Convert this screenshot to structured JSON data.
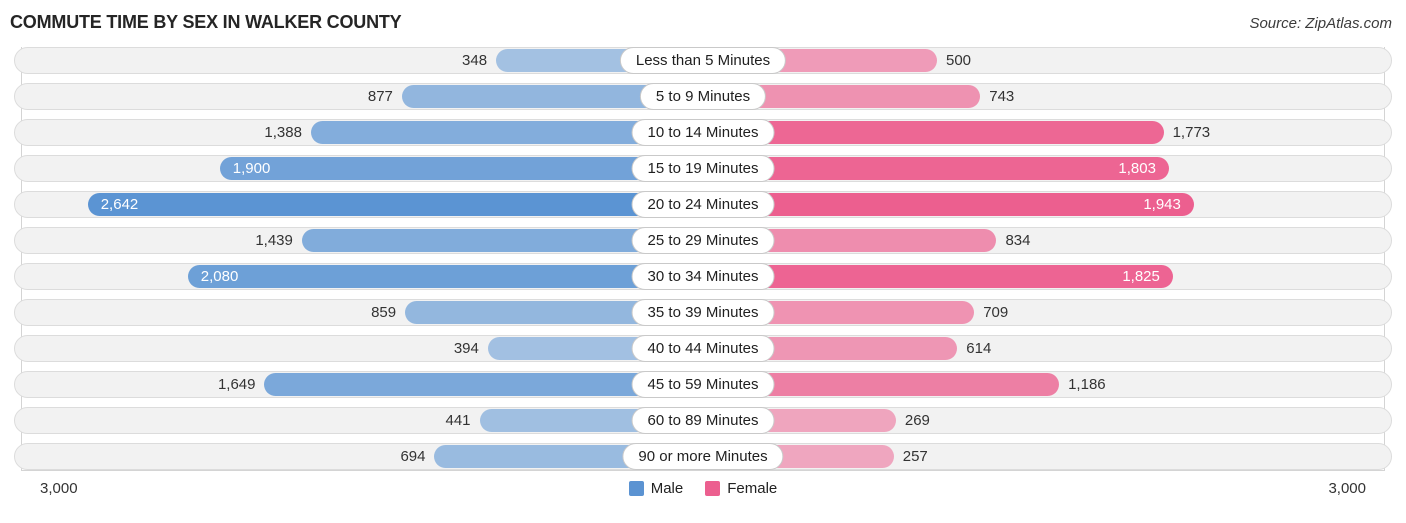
{
  "title": "COMMUTE TIME BY SEX IN WALKER COUNTY",
  "source": "Source: ZipAtlas.com",
  "axis": {
    "left_label": "3,000",
    "right_label": "3,000",
    "max": 3000
  },
  "legend": [
    {
      "label": "Male",
      "color": "#5b93d2"
    },
    {
      "label": "Female",
      "color": "#ec5f8f"
    }
  ],
  "chart_data": {
    "type": "bar",
    "variant": "bidirectional-butterfly",
    "title": "COMMUTE TIME BY SEX IN WALKER COUNTY",
    "categories": [
      "Less than 5 Minutes",
      "5 to 9 Minutes",
      "10 to 14 Minutes",
      "15 to 19 Minutes",
      "20 to 24 Minutes",
      "25 to 29 Minutes",
      "30 to 34 Minutes",
      "35 to 39 Minutes",
      "40 to 44 Minutes",
      "45 to 59 Minutes",
      "60 to 89 Minutes",
      "90 or more Minutes"
    ],
    "series": [
      {
        "name": "Male",
        "side": "left",
        "base_color": "#5b94d3",
        "values": [
          348,
          877,
          1388,
          1900,
          2642,
          1439,
          2080,
          859,
          394,
          1649,
          441,
          694
        ],
        "labels": [
          "348",
          "877",
          "1,388",
          "1,900",
          "2,642",
          "1,439",
          "2,080",
          "859",
          "394",
          "1,649",
          "441",
          "694"
        ]
      },
      {
        "name": "Female",
        "side": "right",
        "base_color": "#ec5f8f",
        "values": [
          500,
          743,
          1773,
          1803,
          1943,
          834,
          1825,
          709,
          614,
          1186,
          269,
          257
        ],
        "labels": [
          "500",
          "743",
          "1,773",
          "1,803",
          "1,943",
          "834",
          "1,825",
          "709",
          "614",
          "1,186",
          "269",
          "257"
        ]
      }
    ],
    "xlim": [
      0,
      3000
    ],
    "grid": false,
    "legend_position": "bottom-center",
    "axis_end_labels": [
      "3,000",
      "3,000"
    ]
  }
}
